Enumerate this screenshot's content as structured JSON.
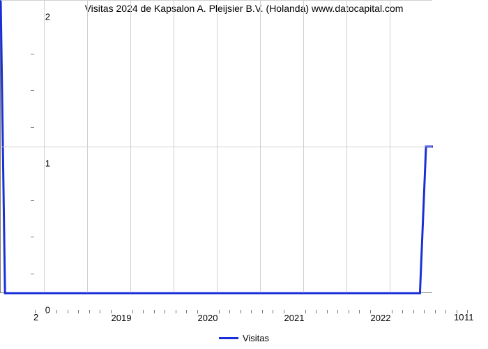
{
  "chart": {
    "type": "line",
    "title": "Visitas 2024 de Kapsalon A. Pleijsier B.V. (Holanda) www.datocapital.com",
    "title_fontsize": 14,
    "background_color": "#ffffff",
    "grid_color": "#d0d0d0",
    "axis_color": "#777777",
    "line_color": "#1a2fd8",
    "line_width": 3,
    "x": {
      "lim": [
        2018,
        2023
      ],
      "major_ticks": [
        2019,
        2020,
        2021,
        2022
      ],
      "minor_tick_step": 0.125,
      "label_fontsize": 13
    },
    "y": {
      "lim": [
        0,
        2
      ],
      "major_ticks": [
        0,
        1,
        2
      ],
      "minor_between": 3,
      "label_fontsize": 13
    },
    "series": {
      "label": "Visitas",
      "x": [
        2018,
        2018.05,
        2022.85,
        2022.92,
        2023.0
      ],
      "y": [
        2.0,
        0.0,
        0.0,
        1.0,
        1.0
      ]
    },
    "corner_labels": {
      "bottom_left": "2",
      "bottom_right_a": "10",
      "bottom_right_b": "11"
    }
  }
}
